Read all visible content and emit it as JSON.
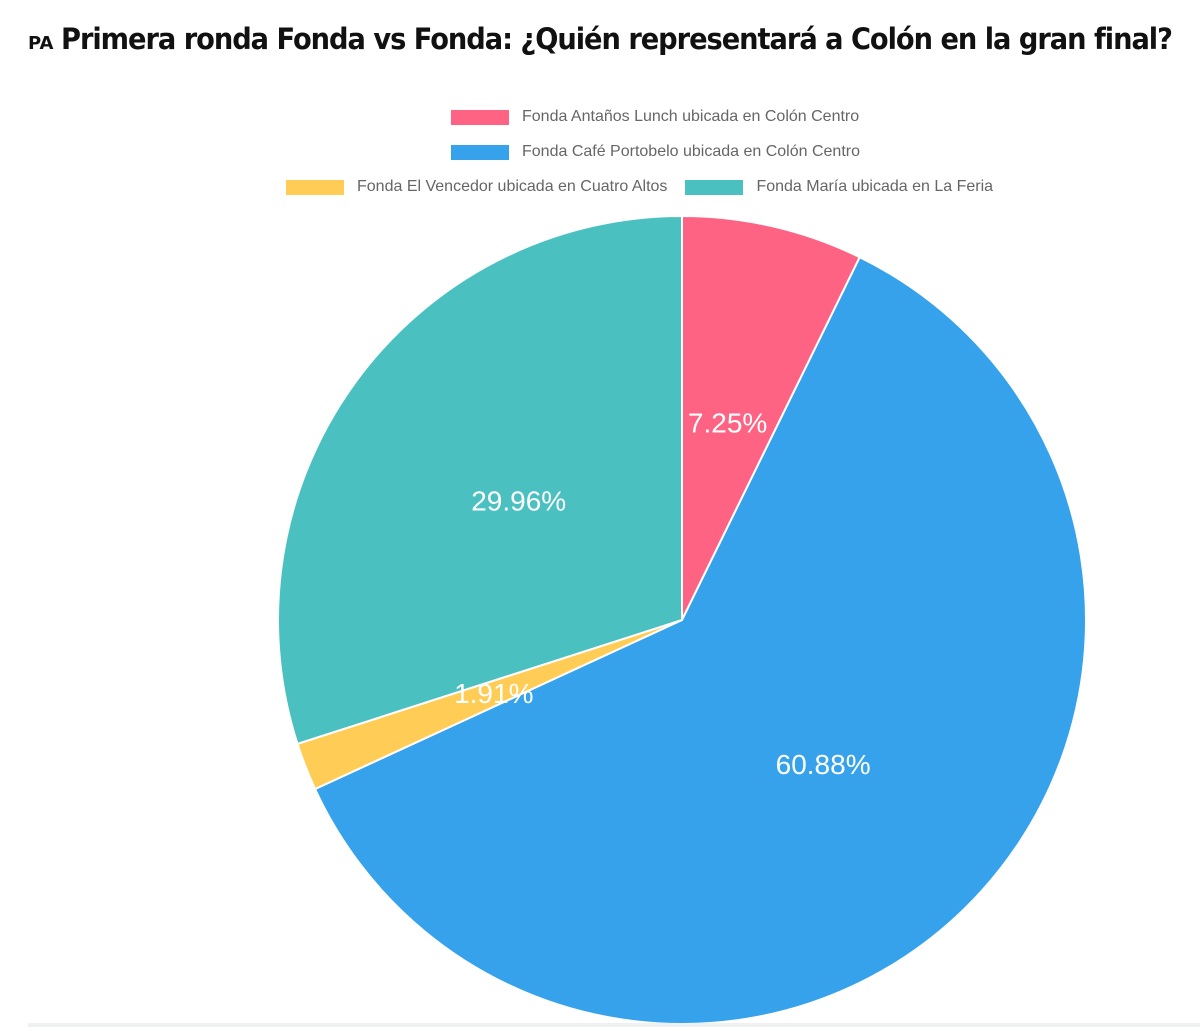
{
  "header": {
    "logo_text": "PA",
    "title": "Primera ronda Fonda vs Fonda: ¿Quién representará a Colón en la gran final?"
  },
  "chart_data": {
    "type": "pie",
    "title": "",
    "legend_position": "top",
    "slices": [
      {
        "label": "Fonda Antaños Lunch ubicada en Colón Centro",
        "value": 7.25,
        "display": "7.25%",
        "color": "#ff6384"
      },
      {
        "label": "Fonda Café Portobelo ubicada en Colón Centro",
        "value": 60.88,
        "display": "60.88%",
        "color": "#36a2eb"
      },
      {
        "label": "Fonda El Vencedor ubicada en Cuatro Altos",
        "value": 1.91,
        "display": "1.91%",
        "color": "#ffcd56"
      },
      {
        "label": "Fonda María ubicada en La Feria",
        "value": 29.96,
        "display": "29.96%",
        "color": "#4bc0c0"
      }
    ]
  }
}
